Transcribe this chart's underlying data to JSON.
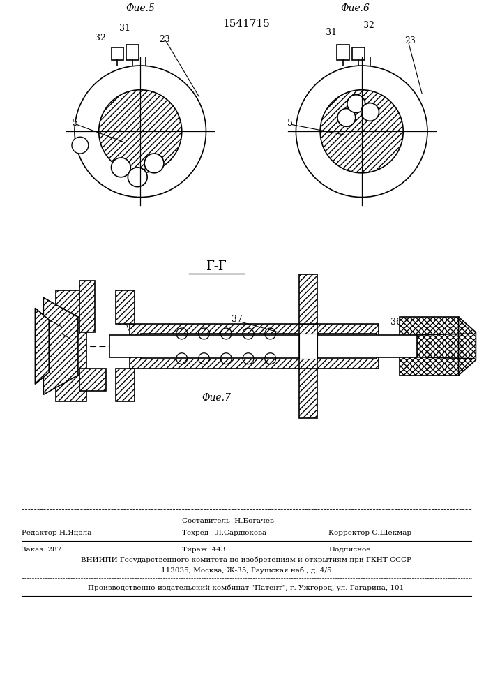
{
  "patent_number": "1541715",
  "fig5_label": "Фие.5",
  "fig6_label": "Фие.6",
  "fig7_label": "Фие.7",
  "section_label": "Г-Г",
  "bg_color": "#ffffff",
  "line_color": "#000000",
  "footer_line1_mid": "Составитель  Н.Богачев",
  "footer_line1_left": "Редактор Н.Яцола",
  "footer_line2_mid": "Техред   Л.Сардюкова",
  "footer_line2_right": "Корректор С.Шекмар",
  "footer_zakaz": "Заказ  287",
  "footer_tirazh": "Тираж  443",
  "footer_podpisnoe": "Подписное",
  "footer_vniipи": "ВНИИПИ Государственного комитета по изобретениям и открытиям при ГКНТ СССР",
  "footer_address": "113035, Москва, Ж-35, Раушская наб., д. 4/5",
  "footer_patent": "Производственно-издательский комбинат \"Патент\", г. Ужгород, ул. Гагарина, 101"
}
